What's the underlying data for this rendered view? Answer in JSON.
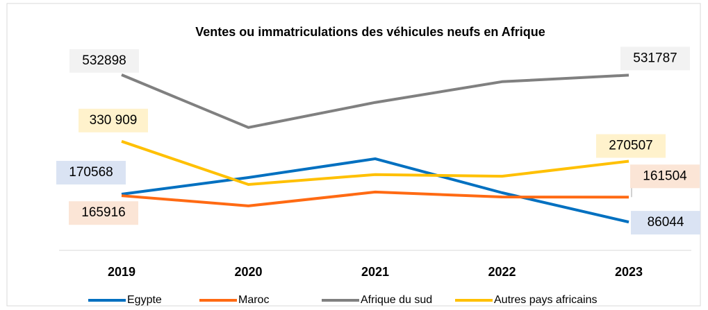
{
  "chart_data": {
    "type": "line",
    "title": "Ventes ou immatriculations des véhicules neufs en Afrique",
    "categories": [
      "2019",
      "2020",
      "2021",
      "2022",
      "2023"
    ],
    "ylim": [
      0,
      600000
    ],
    "series": [
      {
        "name": "Egypte",
        "color": "#0070c0",
        "label_bg": "#dae3f3",
        "values": [
          170568,
          221000,
          278000,
          175000,
          86044
        ],
        "value_labels": [
          "170568",
          null,
          null,
          null,
          "86044"
        ]
      },
      {
        "name": "Maroc",
        "color": "#ff6a13",
        "label_bg": "#fbe5d6",
        "values": [
          165916,
          135000,
          177000,
          162000,
          161504
        ],
        "value_labels": [
          "165916",
          null,
          null,
          null,
          "161504"
        ]
      },
      {
        "name": "Afrique du sud",
        "color": "#808080",
        "label_bg": "#f2f2f2",
        "values": [
          532898,
          373000,
          449000,
          512000,
          531787
        ],
        "value_labels": [
          "532898",
          null,
          null,
          null,
          "531787"
        ]
      },
      {
        "name": "Autres pays africains",
        "color": "#ffc000",
        "label_bg": "#fff2cc",
        "values": [
          330909,
          200000,
          230000,
          225000,
          270507
        ],
        "value_labels": [
          "330 909",
          null,
          null,
          null,
          "270507"
        ]
      }
    ]
  }
}
